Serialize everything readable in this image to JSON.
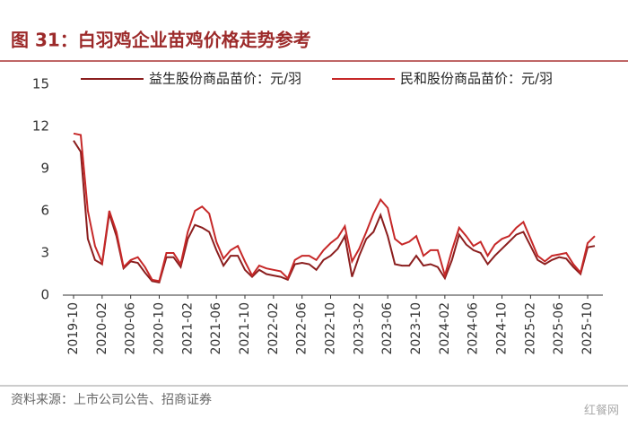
{
  "chart_data": {
    "type": "line",
    "title": "图 31：白羽鸡企业苗鸡价格走势参考",
    "source": "资料来源：上市公司公告、招商证券",
    "watermark": "红餐网",
    "categories": [
      "2019-10",
      null,
      null,
      null,
      "2020-02",
      null,
      null,
      null,
      "2020-06",
      null,
      null,
      null,
      "2020-10",
      null,
      null,
      null,
      "2021-02",
      null,
      null,
      null,
      "2021-06",
      null,
      null,
      null,
      "2021-10",
      null,
      null,
      null,
      "2022-02",
      null,
      null,
      null,
      "2022-06",
      null,
      null,
      null,
      "2022-10",
      null,
      null,
      null,
      "2023-02",
      null,
      null,
      null,
      "2023-06",
      null,
      null,
      null,
      "2023-10",
      null,
      null,
      null,
      "2024-02",
      null,
      null,
      null,
      "2024-06",
      null,
      null,
      null,
      "2024-10",
      null,
      null,
      null,
      "2025-02",
      null,
      null,
      null,
      "2025-06",
      null,
      null,
      null,
      "2025-10",
      null
    ],
    "series": [
      {
        "name": "益生股份商品苗价：元/羽",
        "color": "#8b1e1e",
        "values": [
          11.0,
          10.2,
          4.0,
          2.5,
          2.2,
          5.8,
          4.2,
          1.9,
          2.4,
          2.3,
          1.6,
          1.0,
          0.9,
          2.7,
          2.7,
          2.0,
          4.0,
          5.0,
          4.8,
          4.5,
          3.2,
          2.1,
          2.8,
          2.8,
          1.8,
          1.3,
          1.8,
          1.5,
          1.4,
          1.3,
          1.1,
          2.2,
          2.3,
          2.2,
          1.8,
          2.5,
          2.8,
          3.3,
          4.2,
          1.3,
          2.8,
          4.0,
          4.5,
          5.7,
          4.2,
          2.2,
          2.1,
          2.1,
          2.8,
          2.1,
          2.2,
          2.0,
          1.2,
          2.5,
          4.3,
          3.6,
          3.2,
          3.0,
          2.2,
          2.8,
          3.3,
          3.8,
          4.3,
          4.5,
          3.5,
          2.5,
          2.2,
          2.5,
          2.7,
          2.6,
          2.0,
          1.5,
          3.4,
          3.5
        ]
      },
      {
        "name": "民和股份商品苗价：元/羽",
        "color": "#c62828",
        "values": [
          11.5,
          11.4,
          6.0,
          3.5,
          2.3,
          6.0,
          4.5,
          2.0,
          2.5,
          2.7,
          2.0,
          1.1,
          1.0,
          3.0,
          3.0,
          2.2,
          4.5,
          6.0,
          6.3,
          5.8,
          3.8,
          2.6,
          3.2,
          3.5,
          2.4,
          1.4,
          2.1,
          1.9,
          1.8,
          1.7,
          1.2,
          2.5,
          2.8,
          2.8,
          2.5,
          3.2,
          3.7,
          4.1,
          4.9,
          2.4,
          3.3,
          4.5,
          5.8,
          6.8,
          6.2,
          4.0,
          3.6,
          3.8,
          4.2,
          2.8,
          3.2,
          3.2,
          1.4,
          3.2,
          4.8,
          4.2,
          3.5,
          3.8,
          2.8,
          3.6,
          4.0,
          4.2,
          4.8,
          5.2,
          4.0,
          2.8,
          2.4,
          2.8,
          2.9,
          3.0,
          2.2,
          1.6,
          3.7,
          4.2
        ]
      }
    ],
    "ylim": [
      0,
      15
    ],
    "yticks": [
      0,
      3,
      6,
      9,
      12,
      15
    ],
    "title_color": "#9c2a2a"
  }
}
